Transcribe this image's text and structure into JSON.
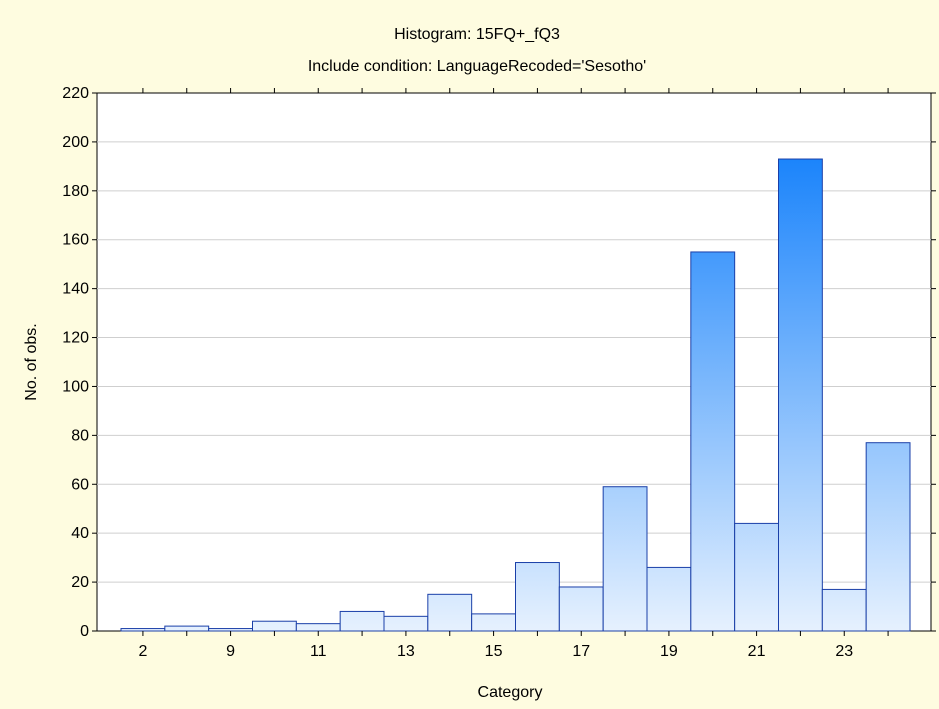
{
  "chart_data": {
    "type": "bar",
    "title": "Histogram: 15FQ+_fQ3",
    "subtitle": "Include condition: LanguageRecoded='Sesotho'",
    "xlabel": "Category",
    "ylabel": "No. of obs.",
    "ylim": [
      0,
      220
    ],
    "y_ticks": [
      0,
      20,
      40,
      60,
      80,
      100,
      120,
      140,
      160,
      180,
      200,
      220
    ],
    "grid": true,
    "categories": [
      "2",
      "",
      "9",
      "",
      "11",
      "",
      "13",
      "",
      "15",
      "",
      "17",
      "",
      "19",
      "",
      "21",
      "",
      "23",
      ""
    ],
    "values": [
      1,
      2,
      1,
      4,
      3,
      8,
      6,
      15,
      7,
      28,
      18,
      59,
      26,
      155,
      44,
      193,
      17,
      77
    ],
    "colors": {
      "background": "#fefce0",
      "plot_background": "#ffffff",
      "bar_low": "#e6f1fe",
      "bar_high": "#1b84fb",
      "bar_stroke": "#1a3fa8",
      "grid": "#cfcfcf"
    }
  }
}
